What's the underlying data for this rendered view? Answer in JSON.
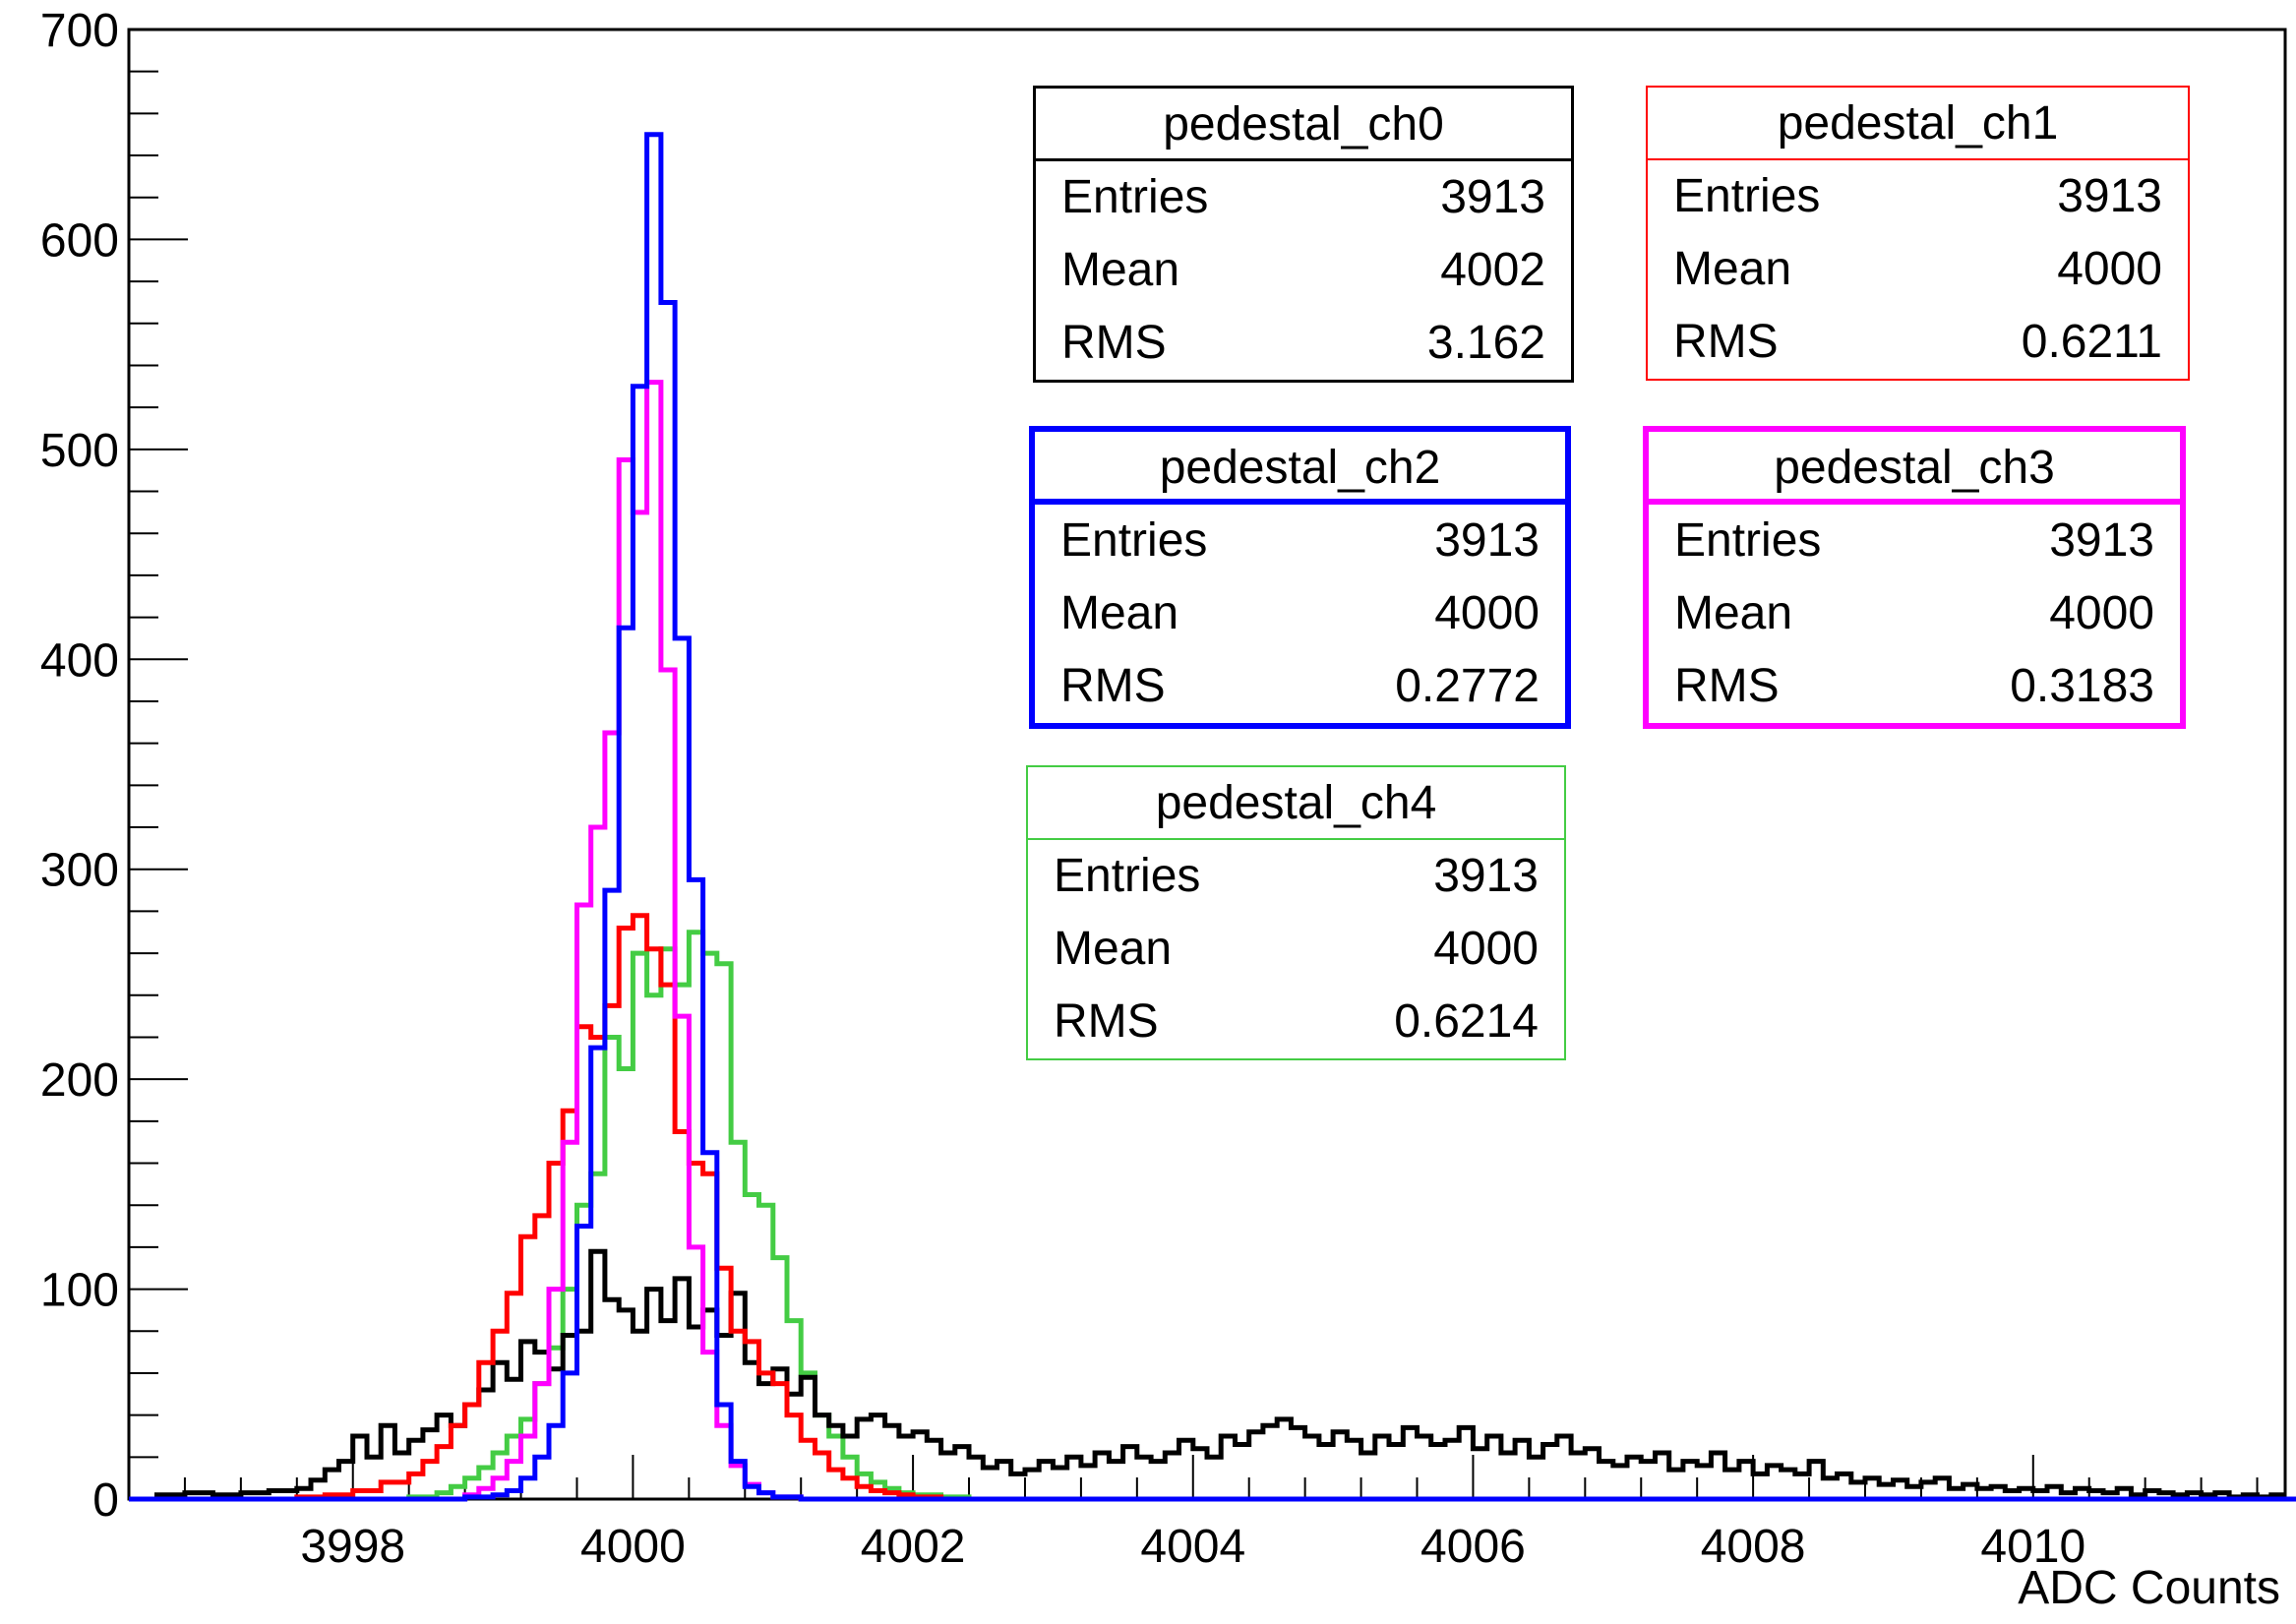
{
  "chart_data": {
    "type": "histogram",
    "xlabel": "ADC Counts",
    "ylabel": "",
    "xlim": [
      3996.4,
      4011.8
    ],
    "ylim": [
      0,
      700
    ],
    "yticks": [
      0,
      100,
      200,
      300,
      400,
      500,
      600,
      700
    ],
    "xticks": [
      3998,
      4000,
      4002,
      4004,
      4006,
      4008,
      4010
    ],
    "bin_width": 0.1,
    "series": [
      {
        "name": "pedestal_ch0",
        "color": "#000000",
        "stats": {
          "Entries": "3913",
          "Mean": "4002",
          "RMS": "3.162"
        },
        "points": [
          [
            3996.4,
            0
          ],
          [
            3996.6,
            2
          ],
          [
            3996.8,
            3
          ],
          [
            3997.0,
            2
          ],
          [
            3997.2,
            3
          ],
          [
            3997.4,
            4
          ],
          [
            3997.6,
            5
          ],
          [
            3997.7,
            9
          ],
          [
            3997.8,
            14
          ],
          [
            3997.9,
            18
          ],
          [
            3998.0,
            30
          ],
          [
            3998.1,
            20
          ],
          [
            3998.2,
            35
          ],
          [
            3998.3,
            22
          ],
          [
            3998.4,
            28
          ],
          [
            3998.5,
            33
          ],
          [
            3998.6,
            40
          ],
          [
            3998.7,
            35
          ],
          [
            3998.8,
            45
          ],
          [
            3998.9,
            52
          ],
          [
            3999.0,
            65
          ],
          [
            3999.1,
            57
          ],
          [
            3999.2,
            75
          ],
          [
            3999.3,
            70
          ],
          [
            3999.4,
            62
          ],
          [
            3999.5,
            78
          ],
          [
            3999.6,
            80
          ],
          [
            3999.7,
            118
          ],
          [
            3999.8,
            95
          ],
          [
            3999.9,
            90
          ],
          [
            4000.0,
            80
          ],
          [
            4000.1,
            100
          ],
          [
            4000.2,
            85
          ],
          [
            4000.3,
            105
          ],
          [
            4000.4,
            82
          ],
          [
            4000.5,
            90
          ],
          [
            4000.6,
            78
          ],
          [
            4000.7,
            98
          ],
          [
            4000.8,
            65
          ],
          [
            4000.9,
            55
          ],
          [
            4001.0,
            62
          ],
          [
            4001.1,
            50
          ],
          [
            4001.2,
            58
          ],
          [
            4001.3,
            40
          ],
          [
            4001.4,
            35
          ],
          [
            4001.5,
            30
          ],
          [
            4001.6,
            38
          ],
          [
            4001.7,
            40
          ],
          [
            4001.8,
            35
          ],
          [
            4001.9,
            30
          ],
          [
            4002.0,
            32
          ],
          [
            4002.1,
            28
          ],
          [
            4002.2,
            22
          ],
          [
            4002.3,
            25
          ],
          [
            4002.4,
            20
          ],
          [
            4002.5,
            15
          ],
          [
            4002.6,
            18
          ],
          [
            4002.7,
            12
          ],
          [
            4002.8,
            14
          ],
          [
            4002.9,
            18
          ],
          [
            4003.0,
            15
          ],
          [
            4003.1,
            20
          ],
          [
            4003.2,
            16
          ],
          [
            4003.3,
            22
          ],
          [
            4003.4,
            18
          ],
          [
            4003.5,
            25
          ],
          [
            4003.6,
            20
          ],
          [
            4003.7,
            18
          ],
          [
            4003.8,
            22
          ],
          [
            4003.9,
            28
          ],
          [
            4004.0,
            24
          ],
          [
            4004.1,
            20
          ],
          [
            4004.2,
            30
          ],
          [
            4004.3,
            26
          ],
          [
            4004.4,
            32
          ],
          [
            4004.5,
            35
          ],
          [
            4004.6,
            38
          ],
          [
            4004.7,
            34
          ],
          [
            4004.8,
            30
          ],
          [
            4004.9,
            26
          ],
          [
            4005.0,
            32
          ],
          [
            4005.1,
            28
          ],
          [
            4005.2,
            22
          ],
          [
            4005.3,
            30
          ],
          [
            4005.4,
            26
          ],
          [
            4005.5,
            34
          ],
          [
            4005.6,
            30
          ],
          [
            4005.7,
            26
          ],
          [
            4005.8,
            28
          ],
          [
            4005.9,
            34
          ],
          [
            4006.0,
            24
          ],
          [
            4006.1,
            30
          ],
          [
            4006.2,
            22
          ],
          [
            4006.3,
            28
          ],
          [
            4006.4,
            20
          ],
          [
            4006.5,
            26
          ],
          [
            4006.6,
            30
          ],
          [
            4006.7,
            22
          ],
          [
            4006.8,
            24
          ],
          [
            4006.9,
            18
          ],
          [
            4007.0,
            16
          ],
          [
            4007.1,
            20
          ],
          [
            4007.2,
            18
          ],
          [
            4007.3,
            22
          ],
          [
            4007.4,
            14
          ],
          [
            4007.5,
            18
          ],
          [
            4007.6,
            16
          ],
          [
            4007.7,
            22
          ],
          [
            4007.8,
            14
          ],
          [
            4007.9,
            18
          ],
          [
            4008.0,
            12
          ],
          [
            4008.1,
            16
          ],
          [
            4008.2,
            14
          ],
          [
            4008.3,
            12
          ],
          [
            4008.4,
            18
          ],
          [
            4008.5,
            10
          ],
          [
            4008.6,
            12
          ],
          [
            4008.7,
            8
          ],
          [
            4008.8,
            10
          ],
          [
            4008.9,
            7
          ],
          [
            4009.0,
            9
          ],
          [
            4009.1,
            6
          ],
          [
            4009.2,
            8
          ],
          [
            4009.3,
            10
          ],
          [
            4009.4,
            5
          ],
          [
            4009.5,
            7
          ],
          [
            4009.6,
            5
          ],
          [
            4009.7,
            6
          ],
          [
            4009.8,
            4
          ],
          [
            4009.9,
            5
          ],
          [
            4010.0,
            4
          ],
          [
            4010.1,
            6
          ],
          [
            4010.2,
            3
          ],
          [
            4010.3,
            5
          ],
          [
            4010.4,
            4
          ],
          [
            4010.5,
            3
          ],
          [
            4010.6,
            5
          ],
          [
            4010.7,
            2
          ],
          [
            4010.8,
            4
          ],
          [
            4010.9,
            3
          ],
          [
            4011.0,
            2
          ],
          [
            4011.1,
            3
          ],
          [
            4011.2,
            2
          ],
          [
            4011.3,
            3
          ],
          [
            4011.4,
            1
          ],
          [
            4011.5,
            2
          ],
          [
            4011.6,
            1
          ],
          [
            4011.7,
            2
          ]
        ]
      },
      {
        "name": "pedestal_ch1",
        "color": "#ff0000",
        "stats": {
          "Entries": "3913",
          "Mean": "4000",
          "RMS": "0.6211"
        },
        "points": [
          [
            3996.4,
            0
          ],
          [
            3997.6,
            1
          ],
          [
            3997.8,
            2
          ],
          [
            3998.0,
            4
          ],
          [
            3998.2,
            8
          ],
          [
            3998.4,
            12
          ],
          [
            3998.5,
            18
          ],
          [
            3998.6,
            25
          ],
          [
            3998.7,
            35
          ],
          [
            3998.8,
            45
          ],
          [
            3998.9,
            65
          ],
          [
            3999.0,
            80
          ],
          [
            3999.1,
            98
          ],
          [
            3999.2,
            125
          ],
          [
            3999.3,
            135
          ],
          [
            3999.4,
            160
          ],
          [
            3999.5,
            185
          ],
          [
            3999.6,
            225
          ],
          [
            3999.7,
            220
          ],
          [
            3999.8,
            235
          ],
          [
            3999.9,
            272
          ],
          [
            4000.0,
            278
          ],
          [
            4000.1,
            262
          ],
          [
            4000.2,
            245
          ],
          [
            4000.3,
            175
          ],
          [
            4000.4,
            160
          ],
          [
            4000.5,
            155
          ],
          [
            4000.6,
            110
          ],
          [
            4000.7,
            80
          ],
          [
            4000.8,
            75
          ],
          [
            4000.9,
            60
          ],
          [
            4001.0,
            55
          ],
          [
            4001.1,
            40
          ],
          [
            4001.2,
            28
          ],
          [
            4001.3,
            22
          ],
          [
            4001.4,
            14
          ],
          [
            4001.5,
            10
          ],
          [
            4001.6,
            6
          ],
          [
            4001.7,
            4
          ],
          [
            4001.8,
            3
          ],
          [
            4001.9,
            2
          ],
          [
            4002.0,
            1
          ],
          [
            4002.2,
            0
          ],
          [
            4011.8,
            0
          ]
        ]
      },
      {
        "name": "pedestal_ch2",
        "color": "#0000ff",
        "stats": {
          "Entries": "3913",
          "Mean": "4000",
          "RMS": "0.2772"
        },
        "points": [
          [
            3996.4,
            0
          ],
          [
            3998.6,
            0
          ],
          [
            3998.8,
            1
          ],
          [
            3999.0,
            2
          ],
          [
            3999.1,
            4
          ],
          [
            3999.2,
            10
          ],
          [
            3999.3,
            20
          ],
          [
            3999.4,
            35
          ],
          [
            3999.5,
            60
          ],
          [
            3999.6,
            130
          ],
          [
            3999.7,
            215
          ],
          [
            3999.8,
            290
          ],
          [
            3999.9,
            415
          ],
          [
            4000.0,
            530
          ],
          [
            4000.1,
            650
          ],
          [
            4000.2,
            570
          ],
          [
            4000.3,
            410
          ],
          [
            4000.4,
            295
          ],
          [
            4000.5,
            165
          ],
          [
            4000.6,
            45
          ],
          [
            4000.7,
            18
          ],
          [
            4000.8,
            6
          ],
          [
            4000.9,
            3
          ],
          [
            4001.0,
            1
          ],
          [
            4001.2,
            0
          ],
          [
            4011.8,
            0
          ]
        ]
      },
      {
        "name": "pedestal_ch3",
        "color": "#ff00ff",
        "stats": {
          "Entries": "3913",
          "Mean": "4000",
          "RMS": "0.3183"
        },
        "points": [
          [
            3996.4,
            0
          ],
          [
            3998.6,
            0
          ],
          [
            3998.8,
            2
          ],
          [
            3998.9,
            5
          ],
          [
            3999.0,
            10
          ],
          [
            3999.1,
            18
          ],
          [
            3999.2,
            30
          ],
          [
            3999.3,
            55
          ],
          [
            3999.4,
            100
          ],
          [
            3999.5,
            170
          ],
          [
            3999.6,
            283
          ],
          [
            3999.7,
            320
          ],
          [
            3999.8,
            365
          ],
          [
            3999.9,
            495
          ],
          [
            4000.0,
            470
          ],
          [
            4000.1,
            532
          ],
          [
            4000.2,
            395
          ],
          [
            4000.3,
            230
          ],
          [
            4000.4,
            120
          ],
          [
            4000.5,
            70
          ],
          [
            4000.6,
            35
          ],
          [
            4000.7,
            16
          ],
          [
            4000.8,
            7
          ],
          [
            4000.9,
            3
          ],
          [
            4001.0,
            1
          ],
          [
            4001.2,
            0
          ],
          [
            4011.8,
            0
          ]
        ]
      },
      {
        "name": "pedestal_ch4",
        "color": "#44cc44",
        "stats": {
          "Entries": "3913",
          "Mean": "4000",
          "RMS": "0.6214"
        },
        "points": [
          [
            3996.4,
            0
          ],
          [
            3998.2,
            0
          ],
          [
            3998.4,
            1
          ],
          [
            3998.6,
            3
          ],
          [
            3998.7,
            6
          ],
          [
            3998.8,
            10
          ],
          [
            3998.9,
            15
          ],
          [
            3999.0,
            22
          ],
          [
            3999.1,
            30
          ],
          [
            3999.2,
            38
          ],
          [
            3999.3,
            55
          ],
          [
            3999.4,
            72
          ],
          [
            3999.5,
            100
          ],
          [
            3999.6,
            140
          ],
          [
            3999.7,
            155
          ],
          [
            3999.8,
            220
          ],
          [
            3999.9,
            205
          ],
          [
            4000.0,
            260
          ],
          [
            4000.1,
            240
          ],
          [
            4000.2,
            262
          ],
          [
            4000.3,
            245
          ],
          [
            4000.4,
            270
          ],
          [
            4000.5,
            260
          ],
          [
            4000.6,
            255
          ],
          [
            4000.7,
            170
          ],
          [
            4000.8,
            145
          ],
          [
            4000.9,
            140
          ],
          [
            4001.0,
            115
          ],
          [
            4001.1,
            85
          ],
          [
            4001.2,
            60
          ],
          [
            4001.3,
            40
          ],
          [
            4001.4,
            30
          ],
          [
            4001.5,
            20
          ],
          [
            4001.6,
            12
          ],
          [
            4001.7,
            8
          ],
          [
            4001.8,
            5
          ],
          [
            4001.9,
            3
          ],
          [
            4002.0,
            2
          ],
          [
            4002.2,
            1
          ],
          [
            4002.4,
            0
          ],
          [
            4011.8,
            0
          ]
        ]
      }
    ]
  },
  "stat_labels": [
    "Entries",
    "Mean",
    "RMS"
  ]
}
